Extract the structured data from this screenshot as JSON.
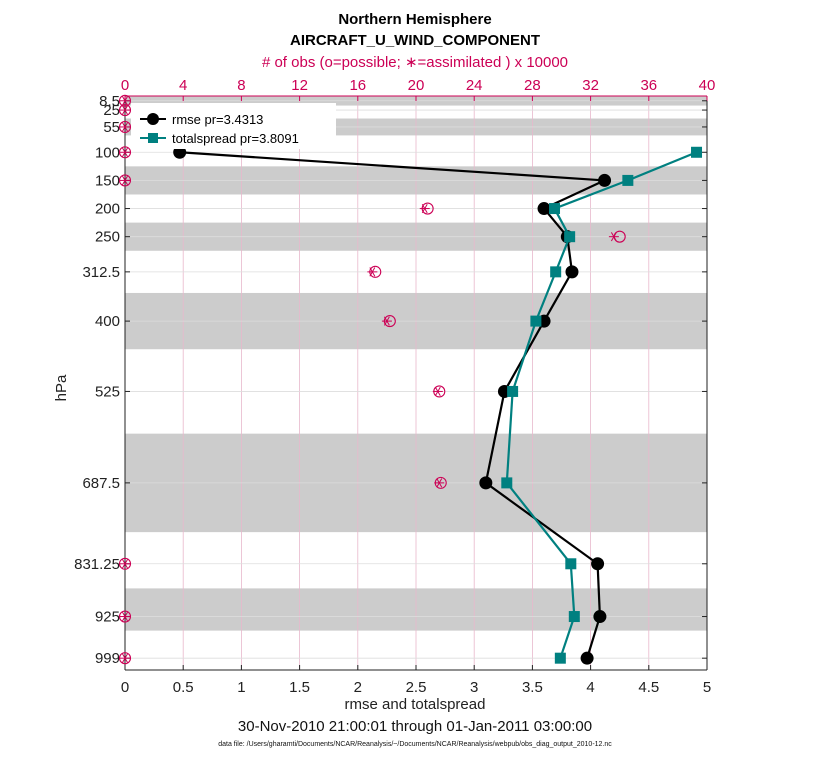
{
  "titles": {
    "line1": "Northern Hemisphere",
    "line2": "AIRCRAFT_U_WIND_COMPONENT",
    "top_axis_label": "# of obs (o=possible; ∗=assimilated ) x 10000",
    "bottom_axis_label": "rmse and totalspread",
    "date_range": "30-Nov-2010 21:00:01 through 01-Jan-2011 03:00:00",
    "data_file": "data file: /Users/gharamti/Documents/NCAR/Reanalysis/~/Documents/NCAR/Reanalysis/webpub/obs_diag_output_2010-12.nc",
    "ylabel": "hPa"
  },
  "colors": {
    "rmse": "#000000",
    "spread": "#008080",
    "obs": "#cc0055",
    "band": "#cccccc",
    "grid": "#dddddd",
    "obs_grid": "#e8b8cc"
  },
  "chart_data": {
    "type": "line",
    "xlim": [
      0,
      5
    ],
    "x_ticks": [
      "0",
      "0.5",
      "1",
      "1.5",
      "2",
      "2.5",
      "3",
      "3.5",
      "4",
      "4.5",
      "5"
    ],
    "x_tick_values": [
      0,
      0.5,
      1,
      1.5,
      2,
      2.5,
      3,
      3.5,
      4,
      4.5,
      5
    ],
    "top_xlim": [
      0,
      40
    ],
    "top_ticks": [
      "0",
      "4",
      "8",
      "12",
      "16",
      "20",
      "24",
      "28",
      "32",
      "36",
      "40"
    ],
    "top_tick_values": [
      0,
      4,
      8,
      12,
      16,
      20,
      24,
      28,
      32,
      36,
      40
    ],
    "y_labels": [
      "8.5",
      "25",
      "55",
      "100",
      "150",
      "200",
      "250",
      "312.5",
      "400",
      "525",
      "687.5",
      "831.25",
      "925",
      "999"
    ],
    "levels": [
      8.5,
      25,
      55,
      100,
      150,
      200,
      250,
      312.5,
      400,
      525,
      687.5,
      831.25,
      925,
      999
    ],
    "ylim_reversed": [
      0,
      1020
    ],
    "bands": [
      [
        0,
        17
      ],
      [
        40,
        70
      ],
      [
        125,
        175
      ],
      [
        225,
        275
      ],
      [
        350,
        450
      ],
      [
        600,
        775
      ],
      [
        875,
        950
      ]
    ],
    "legend": {
      "rmse": "rmse pr=3.4313",
      "spread": "totalspread pr=3.8091",
      "position": "top-left"
    },
    "series": [
      {
        "name": "rmse",
        "levels": [
          100,
          150,
          200,
          250,
          312.5,
          400,
          525,
          687.5,
          831.25,
          925,
          999
        ],
        "values": [
          0.47,
          4.12,
          3.6,
          3.8,
          3.84,
          3.6,
          3.26,
          3.1,
          4.06,
          4.08,
          3.97
        ]
      },
      {
        "name": "totalspread",
        "levels": [
          100,
          150,
          200,
          250,
          312.5,
          400,
          525,
          687.5,
          831.25,
          925,
          999
        ],
        "values": [
          4.91,
          4.32,
          3.69,
          3.82,
          3.7,
          3.53,
          3.33,
          3.28,
          3.83,
          3.86,
          3.74
        ]
      }
    ],
    "obs_counts": {
      "levels": [
        8.5,
        25,
        55,
        100,
        150,
        200,
        250,
        312.5,
        400,
        525,
        687.5,
        831.25,
        925,
        999
      ],
      "possible": [
        0,
        0,
        0,
        0,
        0,
        20.8,
        34.0,
        17.2,
        18.2,
        21.6,
        21.7,
        0,
        0,
        0
      ],
      "assimilated": [
        0,
        0,
        0,
        0,
        0,
        20.6,
        33.6,
        17.0,
        18.0,
        21.5,
        21.6,
        0,
        0,
        0
      ]
    }
  }
}
